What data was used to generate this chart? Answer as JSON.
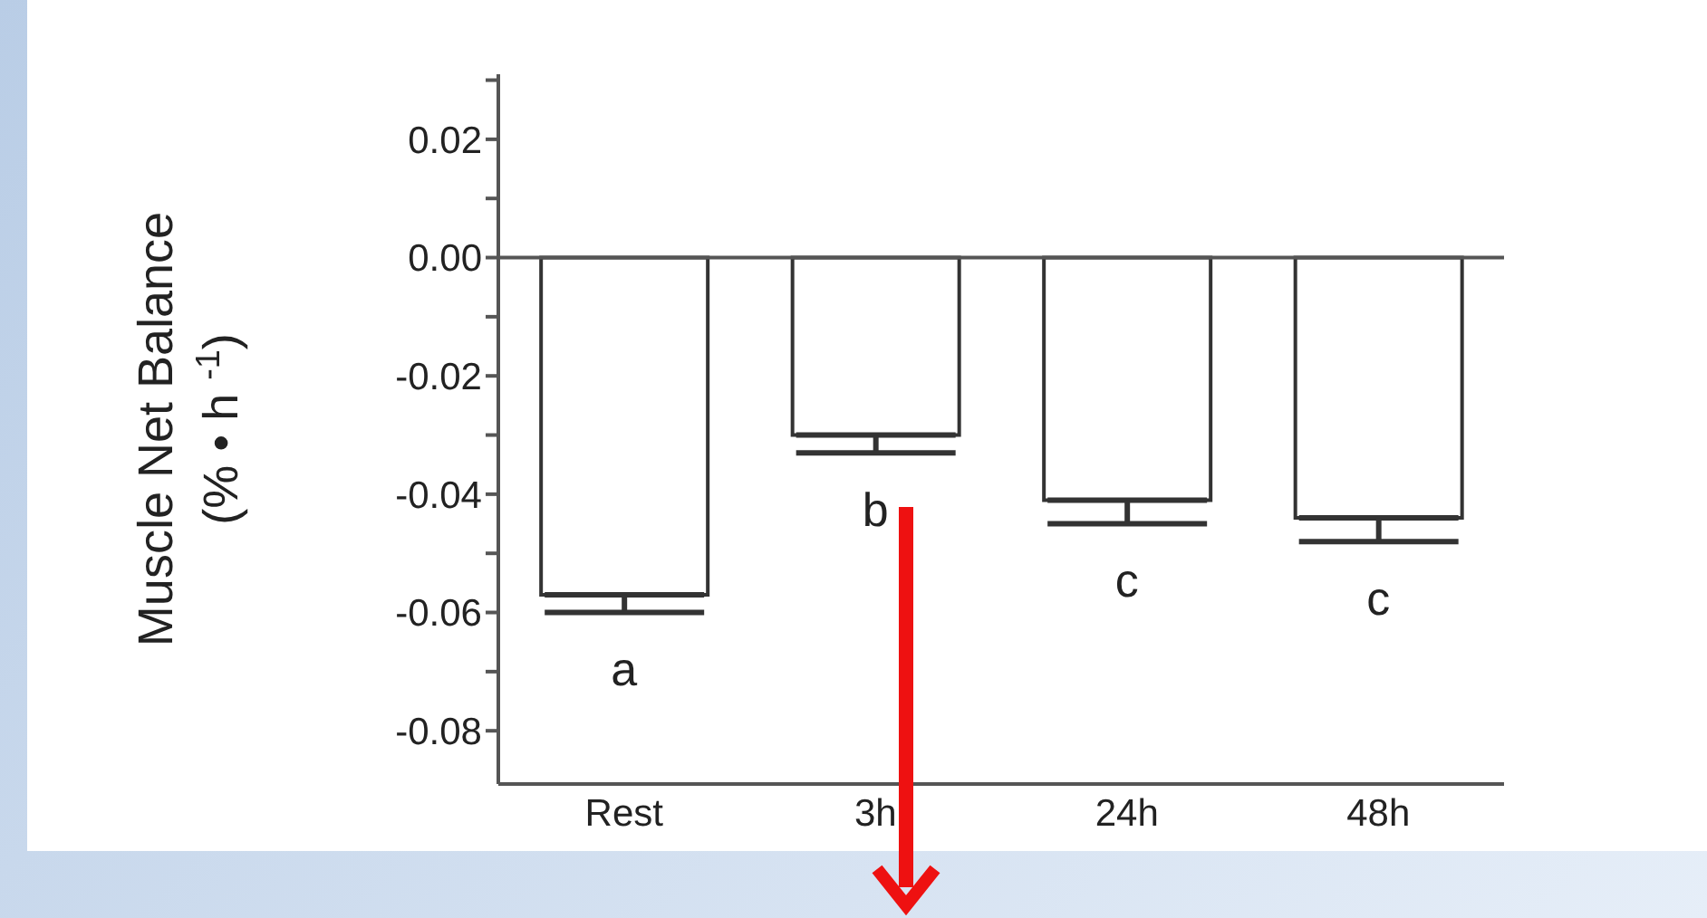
{
  "chart_data": {
    "type": "bar",
    "ylabel": "Muscle Net Balance\n(% • h $^{-1}$)",
    "categories": [
      "Rest",
      "3h",
      "24h",
      "48h"
    ],
    "values": [
      -0.057,
      -0.03,
      -0.041,
      -0.044
    ],
    "errors": [
      [
        -0.06,
        -0.057
      ],
      [
        -0.033,
        -0.03
      ],
      [
        -0.045,
        -0.041
      ],
      [
        -0.048,
        -0.044
      ]
    ],
    "color": "#ffffff",
    "ylim": [
      -0.089,
      0.031
    ],
    "yticks": [
      {
        "value": 0.03,
        "label": null
      },
      {
        "value": 0.02,
        "label": "0.02"
      },
      {
        "value": 0.01,
        "label": null
      },
      {
        "value": 0,
        "label": "0.00"
      },
      {
        "value": -0.01,
        "label": null
      },
      {
        "value": -0.02,
        "label": "-0.02"
      },
      {
        "value": -0.03,
        "label": null
      },
      {
        "value": -0.04,
        "label": "-0.04"
      },
      {
        "value": -0.05,
        "label": null
      },
      {
        "value": -0.06,
        "label": "-0.06"
      },
      {
        "value": -0.07,
        "label": null
      },
      {
        "value": -0.08,
        "label": "-0.08"
      }
    ],
    "ref_lines": [
      {
        "axis": "y",
        "value": 0,
        "color": "#555555"
      }
    ],
    "annotations": [
      "a",
      "b",
      "c",
      "c"
    ],
    "grid": false,
    "legend": false
  }
}
